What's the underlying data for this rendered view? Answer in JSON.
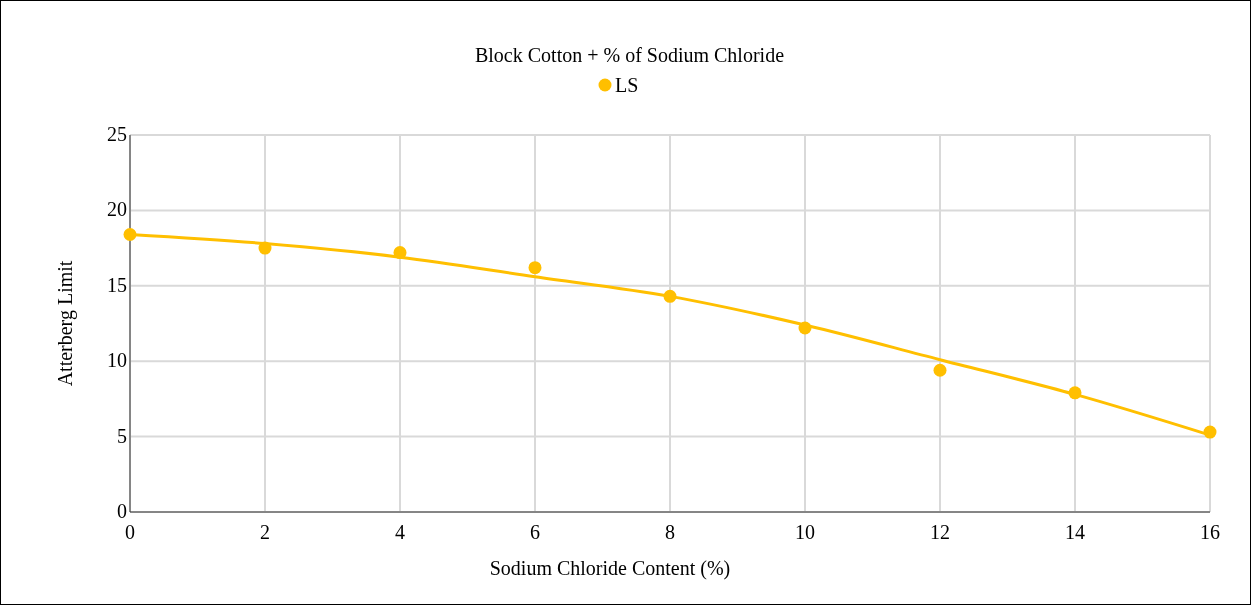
{
  "chart_data": {
    "type": "scatter",
    "title": "Block Cotton + % of Sodium Chloride",
    "xlabel": "Sodium Chloride Content (%)",
    "ylabel": "Atterberg Limit",
    "xlim": [
      0,
      16
    ],
    "xticks": [
      0,
      2,
      4,
      6,
      8,
      10,
      12,
      14,
      16
    ],
    "ylim": [
      0,
      25
    ],
    "yticks": [
      0,
      5,
      10,
      15,
      20,
      25
    ],
    "grid": true,
    "legend": "top",
    "series": [
      {
        "name": "LS",
        "color": "#ffbf00",
        "marker": "circle",
        "x": [
          0,
          2,
          4,
          6,
          8,
          10,
          12,
          14,
          16
        ],
        "values": [
          18.4,
          17.5,
          17.2,
          16.2,
          14.3,
          12.2,
          9.4,
          7.9,
          5.3
        ]
      },
      {
        "type": "line",
        "color": "#ffbf00",
        "x": [
          0,
          2,
          4,
          6,
          8,
          10,
          12,
          14,
          16
        ],
        "values": [
          18.4,
          17.8,
          16.9,
          15.6,
          14.3,
          12.4,
          10.1,
          7.8,
          5.1
        ],
        "line_style": "solid"
      }
    ]
  }
}
